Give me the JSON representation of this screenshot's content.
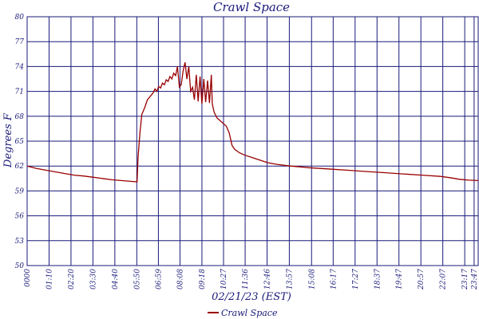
{
  "chart_data": {
    "type": "line",
    "title": "Crawl Space",
    "xlabel": "02/21/23 (EST)",
    "ylabel": "Degrees F",
    "ylim": [
      50,
      80
    ],
    "yticks": [
      50,
      53,
      56,
      59,
      62,
      65,
      68,
      71,
      74,
      77,
      80
    ],
    "x_range_hours": [
      0,
      24
    ],
    "xticks": [
      {
        "label": "0000",
        "hour": 0.0
      },
      {
        "label": "01:10",
        "hour": 1.1667
      },
      {
        "label": "02:20",
        "hour": 2.3333
      },
      {
        "label": "03:30",
        "hour": 3.5
      },
      {
        "label": "04:40",
        "hour": 4.6667
      },
      {
        "label": "05:50",
        "hour": 5.8333
      },
      {
        "label": "06:59",
        "hour": 6.9833
      },
      {
        "label": "08:08",
        "hour": 8.1333
      },
      {
        "label": "09:18",
        "hour": 9.3
      },
      {
        "label": "10:27",
        "hour": 10.45
      },
      {
        "label": "11:36",
        "hour": 11.6
      },
      {
        "label": "12:46",
        "hour": 12.7667
      },
      {
        "label": "13:57",
        "hour": 13.95
      },
      {
        "label": "15:08",
        "hour": 15.1333
      },
      {
        "label": "16:17",
        "hour": 16.2833
      },
      {
        "label": "17:27",
        "hour": 17.45
      },
      {
        "label": "18:37",
        "hour": 18.6167
      },
      {
        "label": "19:47",
        "hour": 19.7833
      },
      {
        "label": "20:57",
        "hour": 20.95
      },
      {
        "label": "22:07",
        "hour": 22.1167
      },
      {
        "label": "23:17",
        "hour": 23.2833
      },
      {
        "label": "23:47",
        "hour": 23.7833
      }
    ],
    "grid": true,
    "legend_position": "bottom-center",
    "series": [
      {
        "name": "Crawl Space",
        "color": "#990000",
        "points": [
          [
            0.0,
            62.0
          ],
          [
            0.5,
            61.7
          ],
          [
            1.0,
            61.5
          ],
          [
            1.5,
            61.3
          ],
          [
            2.0,
            61.1
          ],
          [
            2.5,
            60.9
          ],
          [
            3.0,
            60.8
          ],
          [
            3.5,
            60.65
          ],
          [
            4.0,
            60.5
          ],
          [
            4.5,
            60.35
          ],
          [
            5.0,
            60.25
          ],
          [
            5.5,
            60.15
          ],
          [
            5.85,
            60.1
          ],
          [
            5.9,
            63.0
          ],
          [
            6.0,
            66.0
          ],
          [
            6.1,
            68.2
          ],
          [
            6.25,
            69.0
          ],
          [
            6.4,
            70.0
          ],
          [
            6.55,
            70.4
          ],
          [
            6.7,
            70.8
          ],
          [
            6.8,
            71.3
          ],
          [
            6.9,
            71.0
          ],
          [
            7.0,
            71.6
          ],
          [
            7.1,
            71.4
          ],
          [
            7.2,
            72.0
          ],
          [
            7.3,
            71.8
          ],
          [
            7.4,
            72.4
          ],
          [
            7.5,
            72.2
          ],
          [
            7.6,
            72.8
          ],
          [
            7.7,
            72.5
          ],
          [
            7.8,
            73.2
          ],
          [
            7.9,
            72.9
          ],
          [
            8.0,
            74.0
          ],
          [
            8.1,
            71.5
          ],
          [
            8.2,
            71.8
          ],
          [
            8.3,
            73.5
          ],
          [
            8.4,
            74.5
          ],
          [
            8.5,
            72.5
          ],
          [
            8.6,
            74.0
          ],
          [
            8.7,
            71.0
          ],
          [
            8.8,
            71.5
          ],
          [
            8.9,
            70.0
          ],
          [
            9.0,
            73.0
          ],
          [
            9.1,
            69.8
          ],
          [
            9.2,
            72.8
          ],
          [
            9.3,
            69.5
          ],
          [
            9.4,
            72.5
          ],
          [
            9.5,
            69.7
          ],
          [
            9.6,
            72.3
          ],
          [
            9.7,
            69.6
          ],
          [
            9.8,
            73.0
          ],
          [
            9.85,
            69.5
          ],
          [
            9.95,
            68.5
          ],
          [
            10.1,
            67.8
          ],
          [
            10.3,
            67.4
          ],
          [
            10.5,
            67.0
          ],
          [
            10.6,
            66.8
          ],
          [
            10.75,
            66.0
          ],
          [
            10.9,
            64.5
          ],
          [
            11.05,
            64.0
          ],
          [
            11.3,
            63.6
          ],
          [
            11.6,
            63.3
          ],
          [
            12.0,
            63.0
          ],
          [
            12.4,
            62.7
          ],
          [
            12.8,
            62.4
          ],
          [
            13.3,
            62.2
          ],
          [
            14.0,
            62.0
          ],
          [
            14.5,
            61.9
          ],
          [
            15.0,
            61.8
          ],
          [
            16.0,
            61.65
          ],
          [
            17.0,
            61.5
          ],
          [
            18.0,
            61.35
          ],
          [
            19.0,
            61.2
          ],
          [
            20.0,
            61.05
          ],
          [
            21.0,
            60.9
          ],
          [
            22.0,
            60.75
          ],
          [
            22.5,
            60.6
          ],
          [
            23.0,
            60.4
          ],
          [
            23.5,
            60.3
          ],
          [
            24.0,
            60.25
          ]
        ]
      }
    ]
  }
}
